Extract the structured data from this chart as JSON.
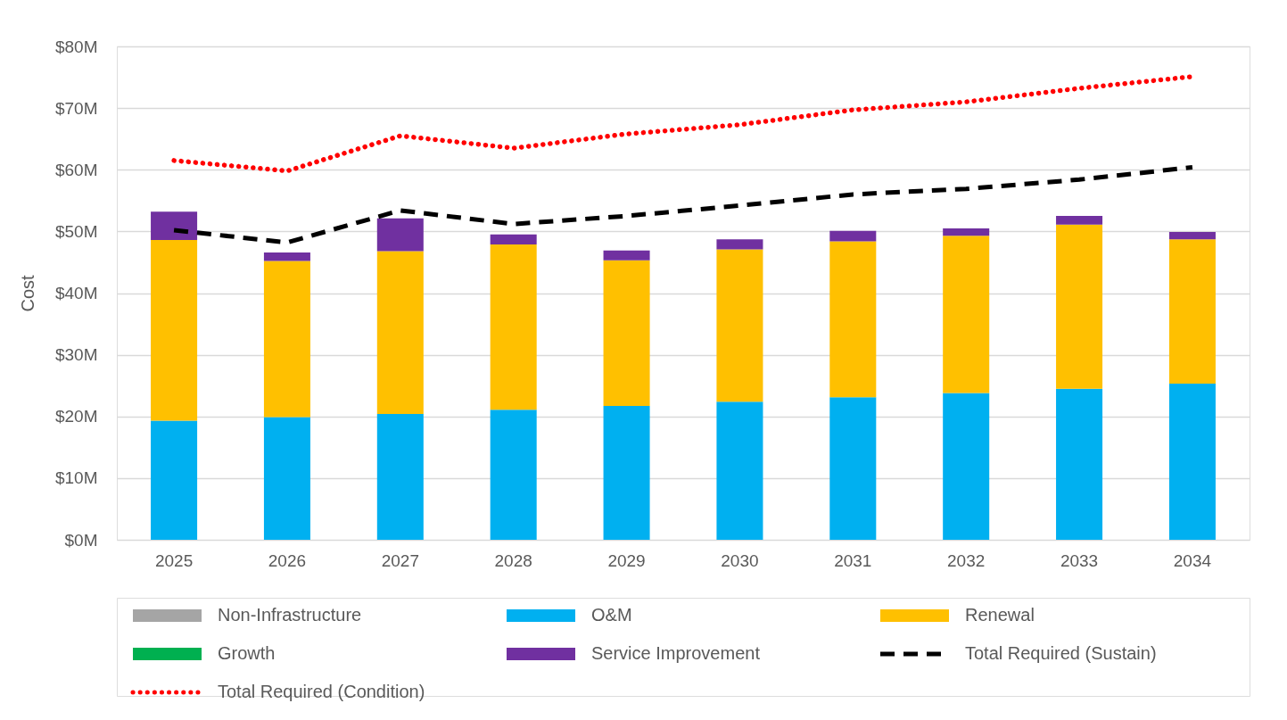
{
  "chart_data": {
    "type": "bar",
    "stacked": true,
    "ylabel": "Cost",
    "categories": [
      "2025",
      "2026",
      "2027",
      "2028",
      "2029",
      "2030",
      "2031",
      "2032",
      "2033",
      "2034"
    ],
    "series": [
      {
        "name": "Non-Infrastructure",
        "color": "#a5a5a5",
        "values": [
          0,
          0,
          0,
          0,
          0,
          0,
          0,
          0,
          0,
          0
        ]
      },
      {
        "name": "O&M",
        "color": "#00b0f0",
        "values": [
          19.3,
          19.9,
          20.4,
          21.1,
          21.7,
          22.4,
          23.1,
          23.8,
          24.5,
          25.3
        ]
      },
      {
        "name": "Renewal",
        "color": "#ffc000",
        "values": [
          29.3,
          25.3,
          26.4,
          26.8,
          23.6,
          24.7,
          25.3,
          25.5,
          26.6,
          23.4
        ]
      },
      {
        "name": "Growth",
        "color": "#00b050",
        "values": [
          0,
          0,
          0,
          0,
          0,
          0,
          0,
          0,
          0,
          0
        ]
      },
      {
        "name": "Service Improvement",
        "color": "#7030a0",
        "values": [
          4.6,
          1.4,
          5.3,
          1.6,
          1.6,
          1.6,
          1.7,
          1.2,
          1.4,
          1.2
        ]
      },
      {
        "name": "Total Required (Sustain)",
        "type": "line",
        "line_style": "dashed",
        "color": "#000000",
        "values": [
          50.2,
          48.2,
          53.4,
          51.2,
          52.5,
          54.2,
          56.0,
          56.9,
          58.4,
          60.4
        ]
      },
      {
        "name": "Total Required (Condition)",
        "type": "line",
        "line_style": "dotted",
        "color": "#ff0000",
        "values": [
          61.5,
          59.8,
          65.5,
          63.5,
          65.8,
          67.3,
          69.7,
          71.0,
          73.2,
          75.1
        ]
      }
    ],
    "ylim": [
      0,
      80
    ],
    "yticks": [
      {
        "value": 0,
        "label": "$0M"
      },
      {
        "value": 10,
        "label": "$10M"
      },
      {
        "value": 20,
        "label": "$20M"
      },
      {
        "value": 30,
        "label": "$30M"
      },
      {
        "value": 40,
        "label": "$40M"
      },
      {
        "value": 50,
        "label": "$50M"
      },
      {
        "value": 60,
        "label": "$60M"
      },
      {
        "value": 70,
        "label": "$70M"
      },
      {
        "value": 80,
        "label": "$80M"
      }
    ],
    "grid": "y",
    "legend": "bottom"
  }
}
